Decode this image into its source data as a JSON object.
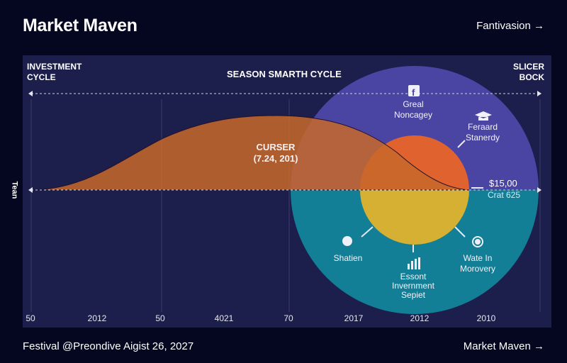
{
  "header": {
    "title": "Market Maven",
    "link": "Fantivasion →"
  },
  "chart": {
    "corner_left": [
      "INVESTMENT",
      "CYCLE"
    ],
    "center_title": "SEASON SMARTH CYCLE",
    "corner_right": [
      "SLICER",
      "BOCK"
    ],
    "y_label": "Tean",
    "curve_label": "CURSER",
    "curve_value": "(7.24, 201)",
    "price": "$15,00",
    "cost": "Crat 625",
    "x_ticks": [
      "50",
      "2012",
      "50",
      "4021",
      "70",
      "2017",
      "2012",
      "2010"
    ],
    "nodes": [
      {
        "icon": "facebook-icon",
        "lines": [
          "Greal",
          "Noncagey"
        ]
      },
      {
        "icon": "graduation-cap-icon",
        "lines": [
          "Feraard",
          "Stanerdy"
        ]
      },
      {
        "icon": "circle-badge-icon",
        "lines": [
          "Shatien"
        ]
      },
      {
        "icon": "bar-chart-icon",
        "lines": [
          "Essont",
          "Invernment",
          "Sepiet"
        ]
      },
      {
        "icon": "target-icon",
        "lines": [
          "Wate In",
          "Morovery"
        ]
      }
    ],
    "colors": {
      "outer_top": "#4a44a3",
      "outer_bottom": "#137f97",
      "inner_top": "#e0622f",
      "inner_bottom": "#d6b032",
      "wave": "#c46a2a"
    }
  },
  "footer": {
    "text": "Festival @Preondive Aigist 26, 2027",
    "link": "Market Maven →"
  }
}
